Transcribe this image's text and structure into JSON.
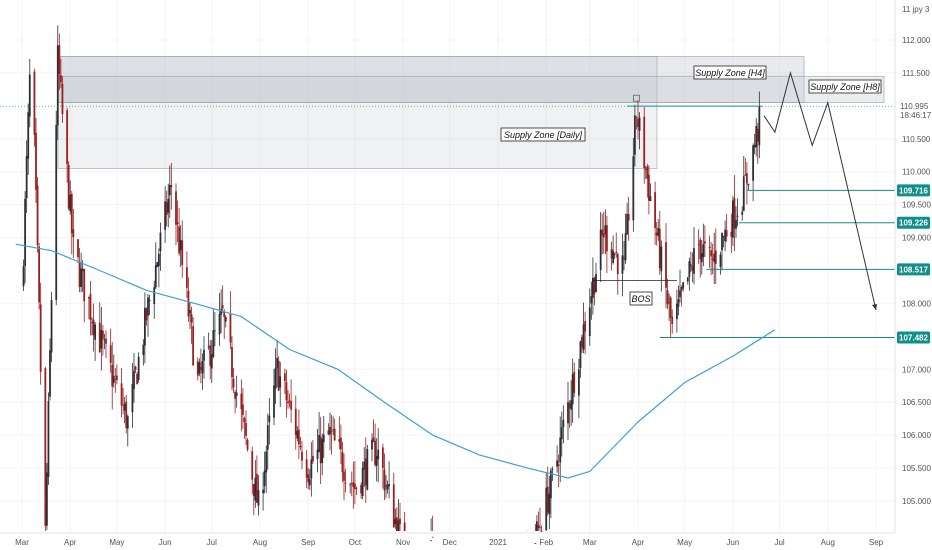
{
  "chart_data": {
    "type": "candlestick",
    "symbol_label": "11 jpy 3",
    "x_tick_labels": [
      "Mar",
      "Apr",
      "May",
      "Jun",
      "Jul",
      "Aug",
      "Sep",
      "Oct",
      "Nov",
      "Dec",
      "2021",
      "Feb",
      "Mar",
      "Apr",
      "May",
      "Jun",
      "Jul",
      "Aug",
      "Sep"
    ],
    "y_tick_labels": [
      "112.000",
      "111.500",
      "110.500",
      "110.000",
      "109.500",
      "109.000",
      "108.000",
      "107.000",
      "106.500",
      "106.000",
      "105.500",
      "105.000"
    ],
    "y_range": [
      104.55,
      112.6
    ],
    "current_price": {
      "value": "110.995",
      "time": "18:46:17"
    },
    "level_badges": [
      "109.716",
      "109.226",
      "108.517",
      "107.482"
    ],
    "zones": [
      {
        "label": "Supply Zone [Daily]",
        "low": 110.05,
        "high": 111.75
      },
      {
        "label": "Supply Zone [H4]",
        "low": 111.05,
        "high": 111.75
      },
      {
        "label": "Supply Zone [H8]",
        "low": 111.05,
        "high": 111.45
      }
    ],
    "annotations": [
      "BOS"
    ],
    "series_legs": [
      {
        "date": "2020-03-01",
        "price": 108.2
      },
      {
        "date": "2020-03-07",
        "price": 112.0
      },
      {
        "date": "2020-03-16",
        "price": 104.5
      },
      {
        "date": "2020-03-24",
        "price": 111.7
      },
      {
        "date": "2020-04-03",
        "price": 108.8
      },
      {
        "date": "2020-04-18",
        "price": 107.6
      },
      {
        "date": "2020-05-08",
        "price": 106.2
      },
      {
        "date": "2020-05-20",
        "price": 107.8
      },
      {
        "date": "2020-06-05",
        "price": 109.8
      },
      {
        "date": "2020-06-22",
        "price": 106.8
      },
      {
        "date": "2020-07-08",
        "price": 107.8
      },
      {
        "date": "2020-07-31",
        "price": 104.9
      },
      {
        "date": "2020-08-12",
        "price": 107.0
      },
      {
        "date": "2020-09-01",
        "price": 105.5
      },
      {
        "date": "2020-09-15",
        "price": 106.0
      },
      {
        "date": "2020-10-01",
        "price": 105.2
      },
      {
        "date": "2020-10-15",
        "price": 105.8
      },
      {
        "date": "2020-11-06",
        "price": 103.8
      },
      {
        "date": "2020-11-20",
        "price": 104.2
      },
      {
        "date": "2021-01-05",
        "price": 102.9
      },
      {
        "date": "2021-01-20",
        "price": 104.0
      },
      {
        "date": "2021-02-05",
        "price": 105.3
      },
      {
        "date": "2021-03-10",
        "price": 109.1
      },
      {
        "date": "2021-03-23",
        "price": 108.5
      },
      {
        "date": "2021-03-31",
        "price": 110.9
      },
      {
        "date": "2021-04-23",
        "price": 107.6
      },
      {
        "date": "2021-05-10",
        "price": 108.9
      },
      {
        "date": "2021-05-18",
        "price": 108.6
      },
      {
        "date": "2021-06-08",
        "price": 109.7
      },
      {
        "date": "2021-06-20",
        "price": 110.95
      }
    ],
    "moving_average": [
      {
        "date": "2020-02-26",
        "price": 108.9
      },
      {
        "date": "2020-03-20",
        "price": 108.8
      },
      {
        "date": "2020-04-20",
        "price": 108.5
      },
      {
        "date": "2020-05-20",
        "price": 108.2
      },
      {
        "date": "2020-06-20",
        "price": 108.0
      },
      {
        "date": "2020-07-20",
        "price": 107.8
      },
      {
        "date": "2020-08-20",
        "price": 107.3
      },
      {
        "date": "2020-09-20",
        "price": 107.0
      },
      {
        "date": "2020-10-20",
        "price": 106.5
      },
      {
        "date": "2020-11-20",
        "price": 106.0
      },
      {
        "date": "2020-12-20",
        "price": 105.7
      },
      {
        "date": "2021-01-20",
        "price": 105.5
      },
      {
        "date": "2021-02-15",
        "price": 105.35
      },
      {
        "date": "2021-03-01",
        "price": 105.45
      },
      {
        "date": "2021-04-01",
        "price": 106.2
      },
      {
        "date": "2021-05-01",
        "price": 106.8
      },
      {
        "date": "2021-06-01",
        "price": 107.2
      },
      {
        "date": "2021-06-28",
        "price": 107.6
      }
    ],
    "projection": [
      {
        "date": "2021-06-21",
        "price": 110.85
      },
      {
        "date": "2021-06-28",
        "price": 110.6
      },
      {
        "date": "2021-07-08",
        "price": 111.5
      },
      {
        "date": "2021-07-22",
        "price": 110.4
      },
      {
        "date": "2021-08-01",
        "price": 111.05
      },
      {
        "date": "2021-09-01",
        "price": 107.9
      }
    ],
    "grid": true
  }
}
